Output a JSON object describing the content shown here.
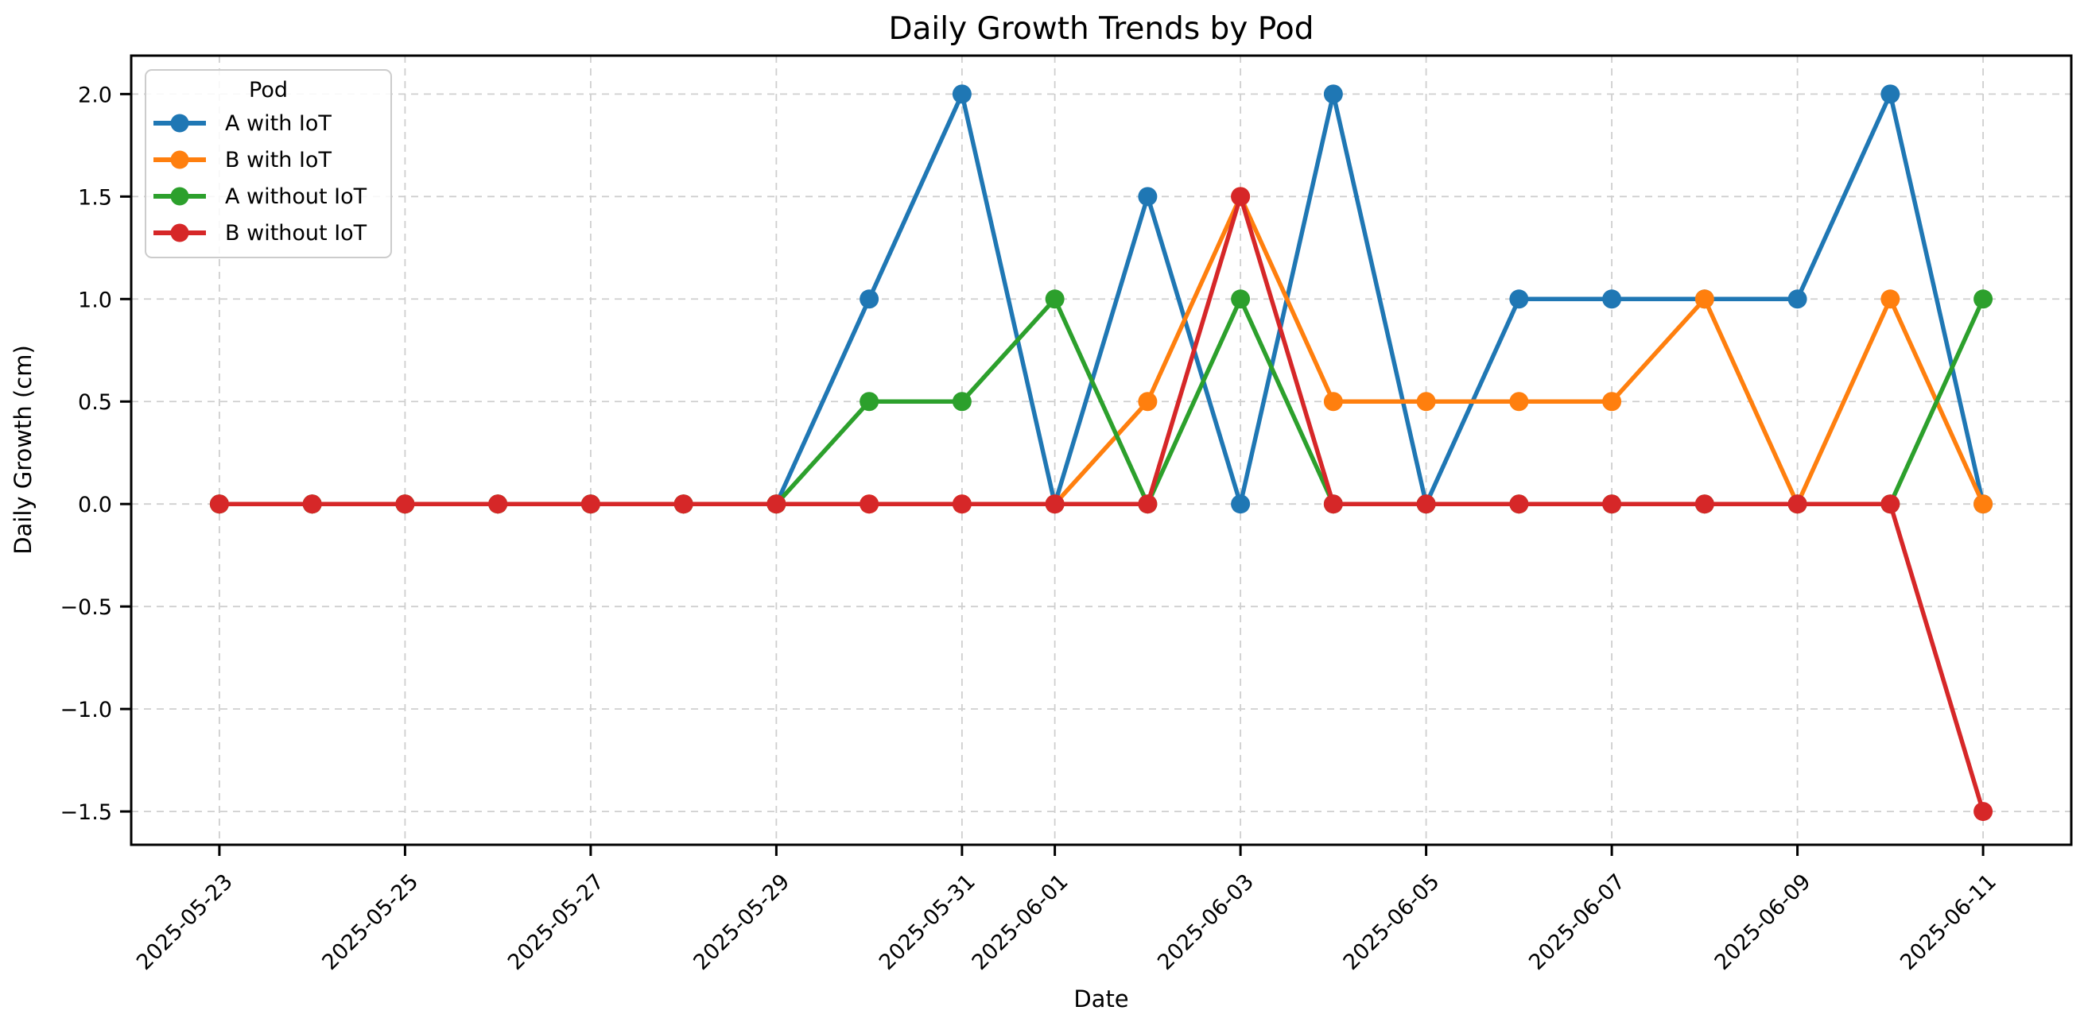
{
  "figure": {
    "title": "Daily Growth Trends by Pod",
    "xlabel": "Date",
    "ylabel": "Daily Growth (cm)"
  },
  "chart_data": {
    "type": "line",
    "title": "Daily Growth Trends by Pod",
    "xlabel": "Date",
    "ylabel": "Daily Growth (cm)",
    "x": [
      "2025-05-23",
      "2025-05-24",
      "2025-05-25",
      "2025-05-26",
      "2025-05-27",
      "2025-05-28",
      "2025-05-29",
      "2025-05-30",
      "2025-05-31",
      "2025-06-01",
      "2025-06-02",
      "2025-06-03",
      "2025-06-04",
      "2025-06-05",
      "2025-06-06",
      "2025-06-07",
      "2025-06-08",
      "2025-06-09",
      "2025-06-10",
      "2025-06-11"
    ],
    "series": [
      {
        "name": "A with IoT",
        "color": "#1f77b4",
        "values": [
          0,
          0,
          0,
          0,
          0,
          0,
          0,
          1.0,
          2.0,
          0.0,
          1.5,
          0.0,
          2.0,
          0.0,
          1.0,
          1.0,
          1.0,
          1.0,
          2.0,
          0.0
        ]
      },
      {
        "name": "B with IoT",
        "color": "#ff7f0e",
        "values": [
          0,
          0,
          0,
          0,
          0,
          0,
          0,
          0.0,
          0.0,
          0.0,
          0.5,
          1.5,
          0.5,
          0.5,
          0.5,
          0.5,
          1.0,
          0.0,
          1.0,
          0.0
        ]
      },
      {
        "name": "A without IoT",
        "color": "#2ca02c",
        "values": [
          0,
          0,
          0,
          0,
          0,
          0,
          0,
          0.5,
          0.5,
          1.0,
          0.0,
          1.0,
          0.0,
          0.0,
          0.0,
          0.0,
          0.0,
          0.0,
          0.0,
          1.0
        ]
      },
      {
        "name": "B without IoT",
        "color": "#d62728",
        "values": [
          0,
          0,
          0,
          0,
          0,
          0,
          0,
          0.0,
          0.0,
          0.0,
          0.0,
          1.5,
          0.0,
          0.0,
          0.0,
          0.0,
          0.0,
          0.0,
          0.0,
          -1.5
        ]
      }
    ],
    "xticks": [
      "2025-05-23",
      "2025-05-25",
      "2025-05-27",
      "2025-05-29",
      "2025-05-31",
      "2025-06-01",
      "2025-06-03",
      "2025-06-05",
      "2025-06-07",
      "2025-06-09",
      "2025-06-11"
    ],
    "yticks": [
      2.0,
      1.5,
      1.0,
      0.5,
      0.0,
      -0.5,
      -1.0,
      -1.5
    ],
    "ylim": [
      -1.6625,
      2.1875
    ],
    "xlim_index": [
      -0.95,
      19.95
    ],
    "grid": true,
    "legend": {
      "title": "Pod",
      "position": "upper-left"
    }
  },
  "style_colors": {
    "grid": "#cfcfcf",
    "spine": "#000000",
    "tick": "#000000",
    "background": "#ffffff"
  }
}
